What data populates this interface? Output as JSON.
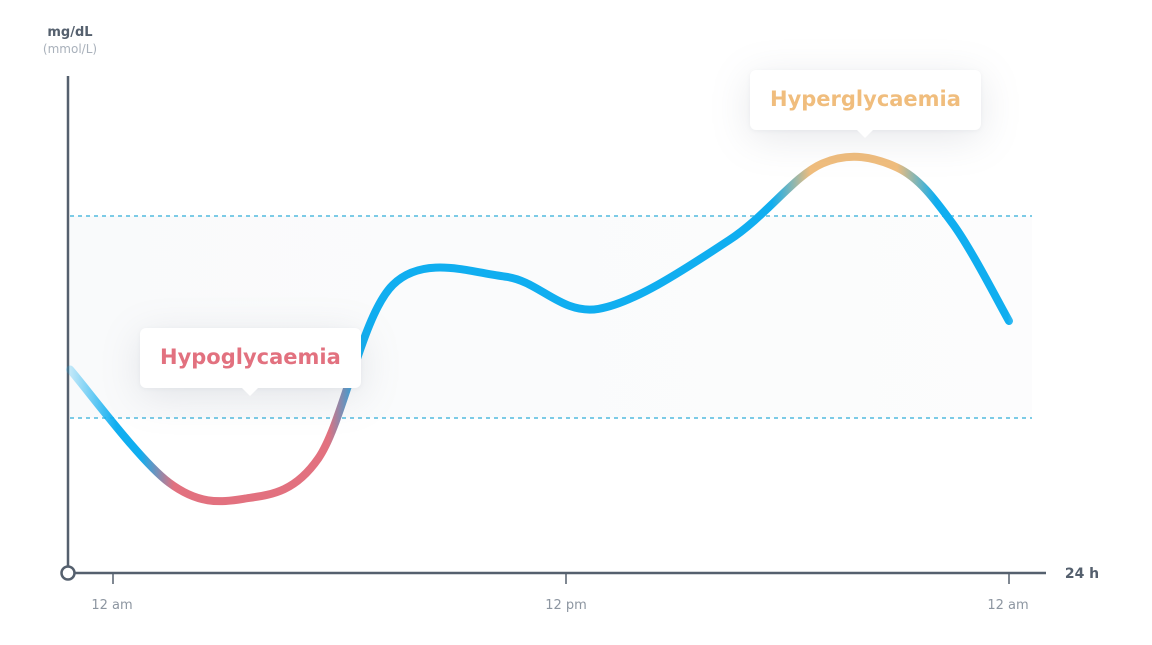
{
  "chart_data": {
    "type": "line",
    "ylabel": "mg/dL",
    "ylabel_sub": "(mmol/L)",
    "xlabel": "24 h",
    "x_ticks": [
      "12 am",
      "12 pm",
      "12 am"
    ],
    "thresholds": {
      "high_label": "Hyperglycaemia",
      "low_label": "Hypoglycaemia"
    },
    "series": [
      {
        "x": [
          0,
          1.5,
          3.5,
          5.5,
          7.5,
          10.5,
          13,
          16.5,
          19,
          21,
          22.5,
          24
        ],
        "values": [
          0.62,
          0.34,
          0.3,
          0.4,
          0.83,
          0.85,
          0.77,
          0.94,
          1.13,
          1.12,
          0.98,
          0.74
        ]
      }
    ],
    "grid": false,
    "colors": {
      "normal": "#10aef0",
      "low": "#e2717f",
      "high": "#f0bd7d",
      "axis": "#55606e",
      "threshold": "#7ccbe6"
    }
  }
}
